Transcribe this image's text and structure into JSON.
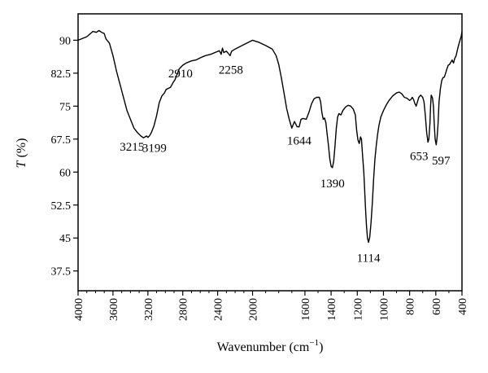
{
  "chart_data": {
    "type": "line",
    "xlabel_main": "Wavenumber (cm",
    "xlabel_sup": "−1",
    "xlabel_tail": ")",
    "ylabel_italic": "T",
    "ylabel_tail": " (%)",
    "xlim": [
      4000,
      400
    ],
    "ylim": [
      33,
      96
    ],
    "x_ticks": [
      4000,
      3600,
      3200,
      2800,
      2400,
      2000,
      1600,
      1400,
      1200,
      1000,
      800,
      600,
      400
    ],
    "x_tick_labels": [
      "4000",
      "3600",
      "3200",
      "2800",
      "2400",
      "2000",
      "1600",
      "1400",
      "1200",
      "1000",
      "800",
      "600",
      "400"
    ],
    "y_ticks": [
      90,
      82.5,
      75,
      67.5,
      60,
      52.5,
      45,
      37.5
    ],
    "y_tick_labels": [
      "90",
      "82.5",
      "75",
      "67.5",
      "60",
      "52.5",
      "45",
      "37.5"
    ],
    "series": [
      {
        "color": "#000000",
        "points": [
          [
            4000,
            90.0
          ],
          [
            3900,
            90.8
          ],
          [
            3830,
            92.0
          ],
          [
            3790,
            91.8
          ],
          [
            3760,
            92.2
          ],
          [
            3730,
            91.8
          ],
          [
            3700,
            91.5
          ],
          [
            3680,
            90.3
          ],
          [
            3640,
            89.3
          ],
          [
            3600,
            86.5
          ],
          [
            3560,
            83.0
          ],
          [
            3520,
            80.0
          ],
          [
            3480,
            77.0
          ],
          [
            3440,
            74.0
          ],
          [
            3400,
            72.0
          ],
          [
            3360,
            70.0
          ],
          [
            3320,
            69.0
          ],
          [
            3280,
            68.2
          ],
          [
            3250,
            67.8
          ],
          [
            3215,
            68.2
          ],
          [
            3199,
            67.9
          ],
          [
            3180,
            68.3
          ],
          [
            3160,
            69.0
          ],
          [
            3130,
            70.5
          ],
          [
            3100,
            72.8
          ],
          [
            3070,
            75.8
          ],
          [
            3040,
            77.3
          ],
          [
            3010,
            78.0
          ],
          [
            2990,
            78.8
          ],
          [
            2970,
            79.0
          ],
          [
            2940,
            79.3
          ],
          [
            2910,
            80.4
          ],
          [
            2890,
            81.0
          ],
          [
            2870,
            82.0
          ],
          [
            2840,
            83.5
          ],
          [
            2800,
            84.3
          ],
          [
            2760,
            84.8
          ],
          [
            2700,
            85.3
          ],
          [
            2650,
            85.5
          ],
          [
            2600,
            86.0
          ],
          [
            2540,
            86.5
          ],
          [
            2480,
            86.8
          ],
          [
            2420,
            87.3
          ],
          [
            2380,
            87.6
          ],
          [
            2360,
            86.8
          ],
          [
            2345,
            88.2
          ],
          [
            2330,
            87.2
          ],
          [
            2300,
            87.5
          ],
          [
            2270,
            86.8
          ],
          [
            2258,
            86.5
          ],
          [
            2240,
            87.5
          ],
          [
            2200,
            88.0
          ],
          [
            2150,
            88.5
          ],
          [
            2100,
            89.0
          ],
          [
            2050,
            89.5
          ],
          [
            2000,
            90.0
          ],
          [
            1950,
            89.5
          ],
          [
            1900,
            88.8
          ],
          [
            1850,
            88.0
          ],
          [
            1820,
            86.5
          ],
          [
            1800,
            84.5
          ],
          [
            1780,
            81.5
          ],
          [
            1760,
            78.0
          ],
          [
            1740,
            74.5
          ],
          [
            1720,
            72.0
          ],
          [
            1700,
            70.0
          ],
          [
            1680,
            71.5
          ],
          [
            1660,
            70.3
          ],
          [
            1644,
            70.3
          ],
          [
            1630,
            72.0
          ],
          [
            1615,
            72.2
          ],
          [
            1590,
            72.0
          ],
          [
            1570,
            73.5
          ],
          [
            1550,
            75.5
          ],
          [
            1530,
            76.7
          ],
          [
            1510,
            77.0
          ],
          [
            1490,
            77.0
          ],
          [
            1480,
            76.0
          ],
          [
            1470,
            73.5
          ],
          [
            1460,
            72.0
          ],
          [
            1450,
            72.3
          ],
          [
            1440,
            71.2
          ],
          [
            1430,
            68.5
          ],
          [
            1420,
            66.0
          ],
          [
            1410,
            63.0
          ],
          [
            1400,
            61.3
          ],
          [
            1390,
            61.0
          ],
          [
            1380,
            62.5
          ],
          [
            1370,
            66.0
          ],
          [
            1360,
            70.0
          ],
          [
            1350,
            72.5
          ],
          [
            1340,
            73.3
          ],
          [
            1325,
            73.0
          ],
          [
            1310,
            74.0
          ],
          [
            1290,
            74.8
          ],
          [
            1270,
            75.2
          ],
          [
            1250,
            75.0
          ],
          [
            1230,
            74.3
          ],
          [
            1215,
            73.0
          ],
          [
            1205,
            69.5
          ],
          [
            1195,
            67.3
          ],
          [
            1185,
            66.5
          ],
          [
            1175,
            68.0
          ],
          [
            1168,
            67.5
          ],
          [
            1160,
            64.0
          ],
          [
            1150,
            60.0
          ],
          [
            1145,
            57.0
          ],
          [
            1138,
            52.5
          ],
          [
            1130,
            48.0
          ],
          [
            1122,
            45.0
          ],
          [
            1114,
            44.0
          ],
          [
            1105,
            45.2
          ],
          [
            1095,
            48.5
          ],
          [
            1085,
            53.0
          ],
          [
            1075,
            58.5
          ],
          [
            1065,
            63.0
          ],
          [
            1055,
            66.0
          ],
          [
            1045,
            68.5
          ],
          [
            1035,
            70.5
          ],
          [
            1020,
            72.5
          ],
          [
            1000,
            74.0
          ],
          [
            980,
            75.2
          ],
          [
            960,
            76.2
          ],
          [
            930,
            77.3
          ],
          [
            900,
            78.0
          ],
          [
            880,
            78.2
          ],
          [
            860,
            77.8
          ],
          [
            840,
            77.0
          ],
          [
            820,
            76.8
          ],
          [
            800,
            76.3
          ],
          [
            790,
            76.5
          ],
          [
            780,
            77.0
          ],
          [
            770,
            76.5
          ],
          [
            760,
            75.6
          ],
          [
            750,
            75.0
          ],
          [
            740,
            76.0
          ],
          [
            730,
            77.0
          ],
          [
            715,
            77.5
          ],
          [
            700,
            77.0
          ],
          [
            690,
            76.0
          ],
          [
            680,
            73.0
          ],
          [
            670,
            69.0
          ],
          [
            660,
            66.8
          ],
          [
            653,
            67.5
          ],
          [
            645,
            71.0
          ],
          [
            640,
            75.0
          ],
          [
            635,
            77.5
          ],
          [
            630,
            77.2
          ],
          [
            625,
            76.8
          ],
          [
            618,
            75.0
          ],
          [
            612,
            71.0
          ],
          [
            605,
            67.5
          ],
          [
            597,
            66.2
          ],
          [
            590,
            67.8
          ],
          [
            583,
            71.0
          ],
          [
            575,
            76.0
          ],
          [
            565,
            79.0
          ],
          [
            555,
            80.8
          ],
          [
            545,
            81.5
          ],
          [
            535,
            81.6
          ],
          [
            525,
            82.5
          ],
          [
            515,
            83.5
          ],
          [
            505,
            84.3
          ],
          [
            495,
            84.5
          ],
          [
            485,
            85.0
          ],
          [
            475,
            85.5
          ],
          [
            465,
            84.8
          ],
          [
            455,
            85.8
          ],
          [
            445,
            86.5
          ],
          [
            435,
            87.8
          ],
          [
            425,
            89.0
          ],
          [
            415,
            90.0
          ],
          [
            405,
            91.0
          ],
          [
            400,
            92.0
          ]
        ]
      }
    ],
    "annotations": [
      {
        "text": "3215",
        "x": 3215,
        "y": 68.2
      },
      {
        "text": "3199",
        "x": 3199,
        "y": 67.9
      },
      {
        "text": "2910",
        "x": 2910,
        "y": 80.4
      },
      {
        "text": "2258",
        "x": 2258,
        "y": 86.5
      },
      {
        "text": "1644",
        "x": 1644,
        "y": 70.3
      },
      {
        "text": "1390",
        "x": 1390,
        "y": 61.0
      },
      {
        "text": "1114",
        "x": 1114,
        "y": 44.0
      },
      {
        "text": "653",
        "x": 653,
        "y": 66.8
      },
      {
        "text": "597",
        "x": 597,
        "y": 66.2
      }
    ]
  }
}
